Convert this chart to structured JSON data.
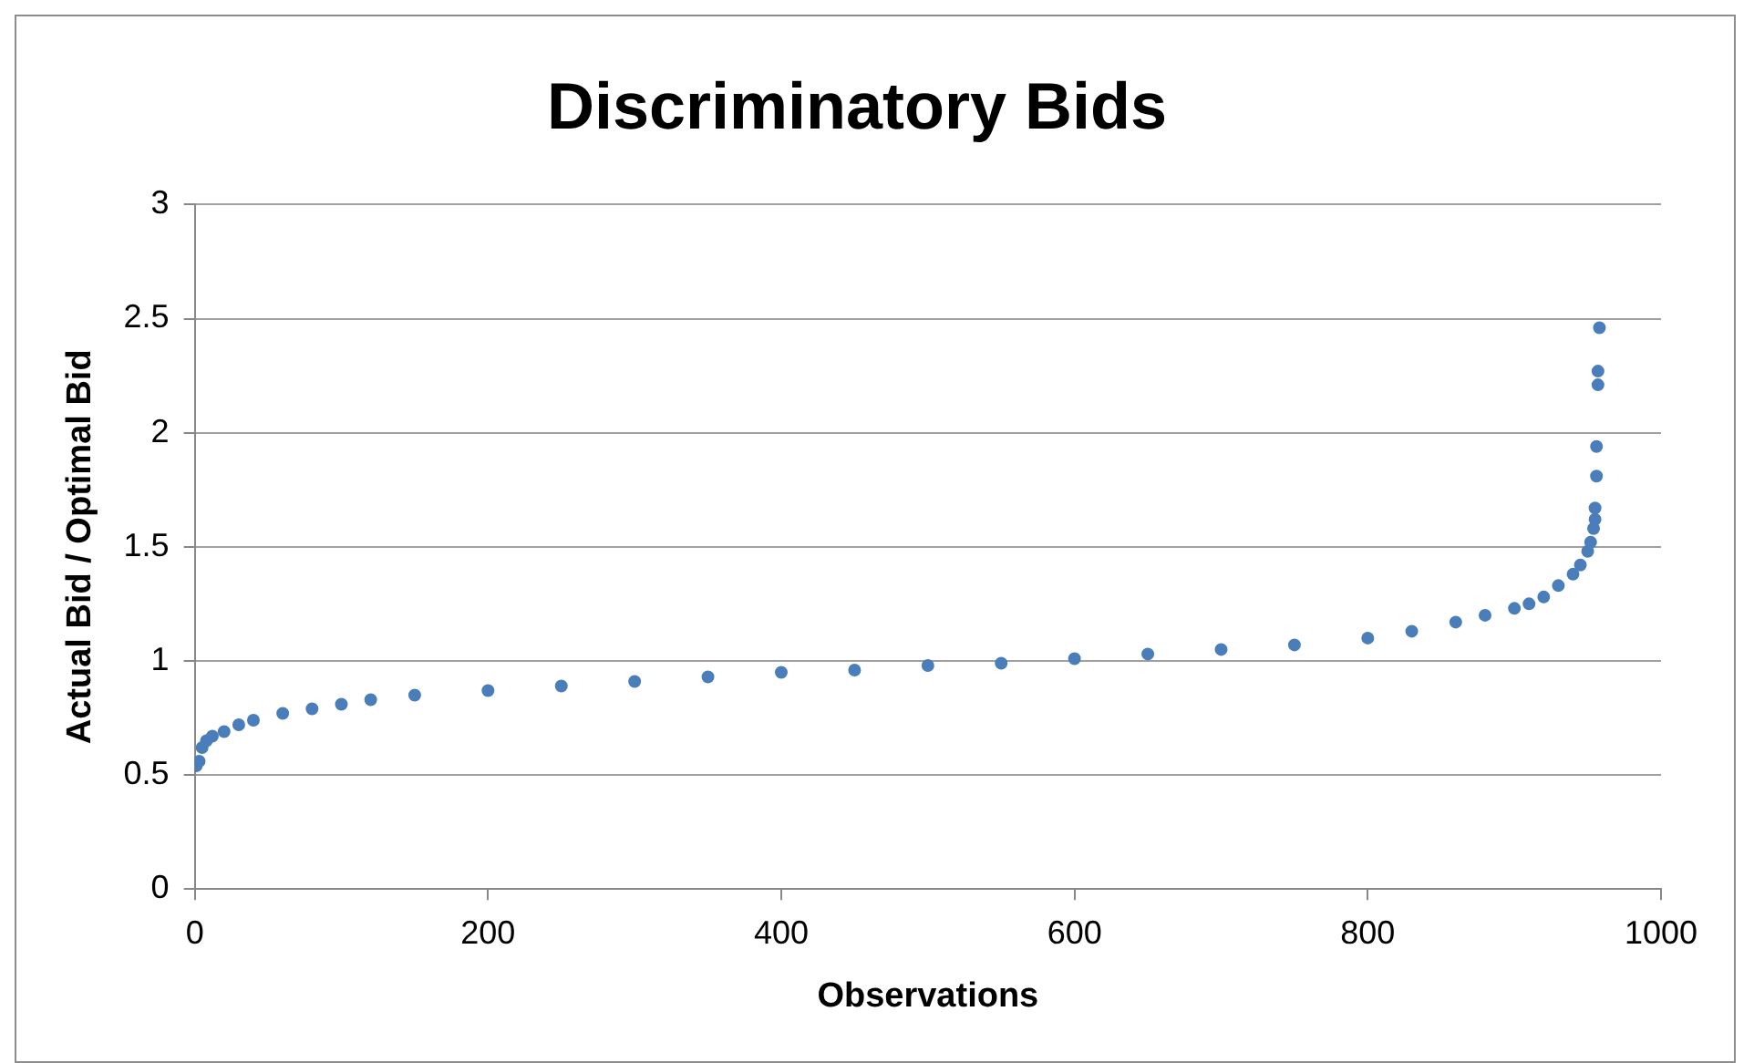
{
  "chart_data": {
    "type": "scatter",
    "title": "Discriminatory Bids",
    "xlabel": "Observations",
    "ylabel": "Actual Bid / Optimal Bid",
    "series": [
      {
        "color": "#4a7ebb",
        "x": [
          1,
          3,
          5,
          8,
          12,
          20,
          30,
          40,
          60,
          80,
          100,
          120,
          150,
          200,
          250,
          300,
          350,
          400,
          450,
          500,
          550,
          600,
          650,
          700,
          750,
          800,
          830,
          860,
          880,
          900,
          910,
          920,
          930,
          940,
          945,
          950,
          952,
          954,
          955,
          955,
          956,
          956,
          957,
          957,
          958
        ],
        "values": [
          0.54,
          0.56,
          0.62,
          0.65,
          0.67,
          0.69,
          0.72,
          0.74,
          0.77,
          0.79,
          0.81,
          0.83,
          0.85,
          0.87,
          0.89,
          0.91,
          0.93,
          0.95,
          0.96,
          0.98,
          0.99,
          1.01,
          1.03,
          1.05,
          1.07,
          1.1,
          1.13,
          1.17,
          1.2,
          1.23,
          1.25,
          1.28,
          1.33,
          1.38,
          1.42,
          1.48,
          1.52,
          1.58,
          1.62,
          1.67,
          1.81,
          1.94,
          2.21,
          2.27,
          2.46
        ]
      }
    ],
    "xlim": [
      0,
      1000
    ],
    "xticks": [
      0,
      200,
      400,
      600,
      800,
      1000
    ],
    "ylim": [
      0,
      3
    ],
    "yticks": [
      0,
      0.5,
      1,
      1.5,
      2,
      2.5,
      3
    ],
    "grid": "y",
    "legend": false,
    "marker": "circle"
  }
}
